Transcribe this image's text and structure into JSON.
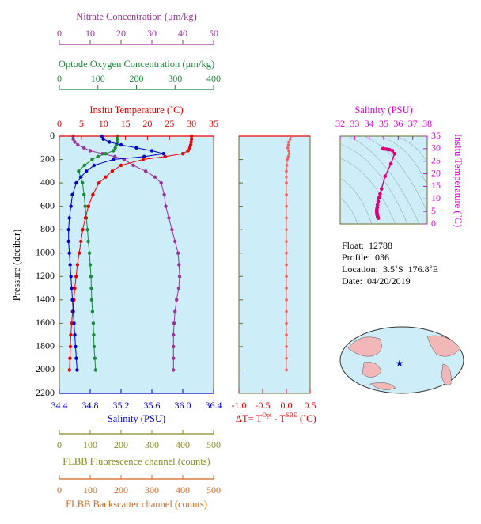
{
  "chart_data": [
    {
      "type": "line",
      "ylabel": "Pressure (decibar)",
      "y": [
        0,
        25,
        50,
        75,
        100,
        125,
        150,
        175,
        200,
        250,
        300,
        350,
        400,
        500,
        600,
        700,
        800,
        900,
        1000,
        1100,
        1200,
        1300,
        1400,
        1500,
        1600,
        1700,
        1800,
        1900,
        2000
      ],
      "ylim": [
        0,
        2200
      ],
      "yticks": [
        0,
        200,
        400,
        600,
        800,
        1000,
        1200,
        1400,
        1600,
        1800,
        2000,
        2200
      ],
      "x_axes": [
        {
          "label": "Nitrate Concentration (μm/kg)",
          "xlim": [
            0,
            50
          ],
          "xticks": [
            0,
            10,
            20,
            30,
            40,
            50
          ],
          "color": "#993399",
          "values": [
            4.5,
            4.5,
            5,
            6,
            8,
            10,
            14,
            18,
            21,
            24,
            28,
            31,
            33,
            34,
            34.5,
            35.5,
            36.5,
            37.5,
            38.5,
            38.8,
            39,
            38.7,
            38,
            37.5,
            37.2,
            37,
            37,
            37,
            37
          ]
        },
        {
          "label": "Optode Oxygen Concentration (μm/kg)",
          "xlim": [
            0,
            400
          ],
          "xticks": [
            0,
            100,
            200,
            300,
            400
          ],
          "color": "#1a8a3a",
          "values": [
            150,
            150,
            150,
            148,
            145,
            140,
            120,
            100,
            85,
            65,
            50,
            55,
            60,
            64,
            67,
            70,
            73,
            75,
            78,
            80,
            82,
            83,
            84,
            86,
            88,
            89,
            90,
            92,
            94
          ]
        },
        {
          "label": "Insitu Temperature (˚C)",
          "xlim": [
            0,
            35
          ],
          "xticks": [
            0,
            5,
            10,
            15,
            20,
            25,
            30,
            35
          ],
          "color": "#ee0000",
          "values": [
            30,
            30,
            29.9,
            29.8,
            29.6,
            29.2,
            28,
            24,
            19,
            14,
            12,
            10.5,
            9,
            7.6,
            6.6,
            5.9,
            5.3,
            4.9,
            4.5,
            4.1,
            3.8,
            3.5,
            3.3,
            3,
            2.8,
            2.6,
            2.5,
            2.4,
            2.3
          ]
        },
        {
          "label": "Salinity (PSU)",
          "xlim": [
            34.4,
            36.4
          ],
          "xticks": [
            34.4,
            34.8,
            35.2,
            35.6,
            {
              "value": 36,
              "label": "36.0"
            },
            36.4
          ],
          "color": "#0000cc",
          "values": [
            34.95,
            34.97,
            35.05,
            35.2,
            35.4,
            35.6,
            35.75,
            35.5,
            35.1,
            34.85,
            34.75,
            34.68,
            34.62,
            34.57,
            34.55,
            34.53,
            34.52,
            34.52,
            34.53,
            34.54,
            34.55,
            34.56,
            34.57,
            34.58,
            34.59,
            34.6,
            34.61,
            34.62,
            34.63
          ]
        },
        {
          "label": "FLBB Fluorescence channel (counts)",
          "xlim": [
            0,
            500
          ],
          "xticks": [
            0,
            100,
            200,
            300,
            400,
            500
          ],
          "color": "#8b8b1e"
        },
        {
          "label": "FLBB Backscatter channel (counts)",
          "xlim": [
            0,
            500
          ],
          "xticks": [
            0,
            100,
            200,
            300,
            400,
            500
          ],
          "color": "#d2691e"
        }
      ]
    },
    {
      "type": "scatter",
      "xlabel": [
        "ΔT= T",
        "Opt",
        " - T",
        "SBE",
        " (˚C)"
      ],
      "xlim": [
        -1,
        0.5
      ],
      "xticks": [
        {
          "value": -1,
          "label": "-1.0"
        },
        -0.5,
        {
          "value": 0,
          "label": "0.0"
        },
        0.5
      ],
      "color": "#f06060",
      "values": [
        0.1,
        0.08,
        0.05,
        0.04,
        0.03,
        0.05,
        0.06,
        0.04,
        0.02,
        0.01,
        0,
        0,
        0,
        0,
        0,
        0,
        0,
        0,
        0,
        0,
        0,
        0,
        0,
        0,
        0,
        0,
        0,
        0,
        0
      ]
    },
    {
      "type": "scatter",
      "xlabel": "Salinity (PSU)",
      "ylabel": "Insitu Temperature (˚C)",
      "xlim": [
        32,
        38
      ],
      "xticks": [
        32,
        33,
        34,
        35,
        36,
        37,
        38
      ],
      "ylim": [
        0,
        35
      ],
      "yticks": [
        0,
        5,
        10,
        15,
        20,
        25,
        30,
        35
      ],
      "color": "#e0007a"
    }
  ],
  "info": [
    "Float:  12788",
    "Profile:  036",
    "Location:  3.5˚S  176.8˚E",
    "Date:  04/20/2019"
  ]
}
